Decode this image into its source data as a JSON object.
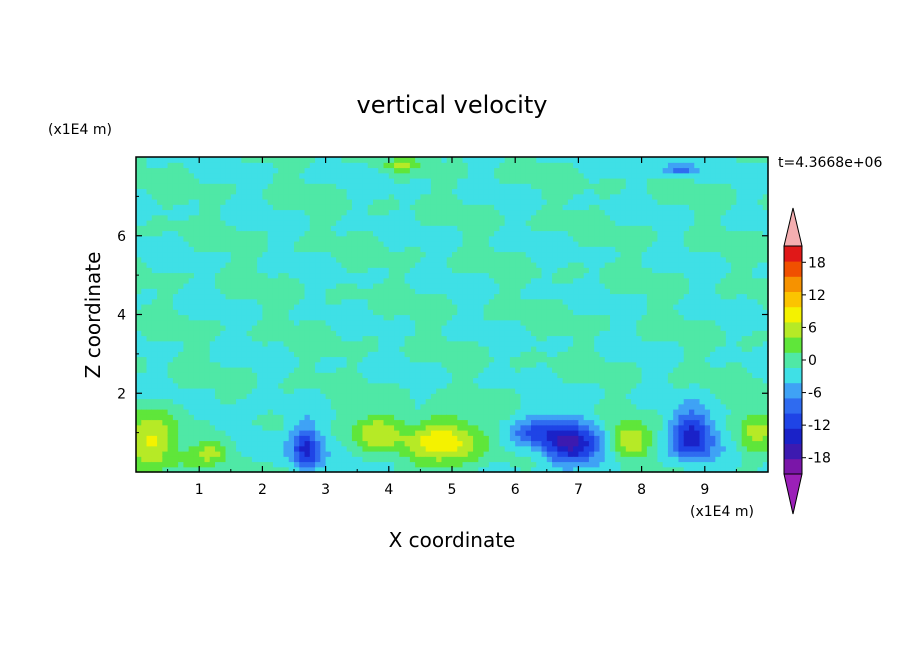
{
  "chart_data": {
    "type": "heatmap",
    "title": "vertical velocity",
    "xlabel": "X coordinate",
    "ylabel": "Z coordinate",
    "x_unit": "(x1E4 m)",
    "y_unit": "(x1E4 m)",
    "time_label": "t=4.3668e+06",
    "xlim": [
      0,
      10
    ],
    "ylim": [
      0,
      8
    ],
    "x_ticks": [
      1,
      2,
      3,
      4,
      5,
      6,
      7,
      8,
      9
    ],
    "y_ticks": [
      2,
      4,
      6
    ],
    "colorbar": {
      "levels": [
        -21,
        -18,
        -15,
        -12,
        -9,
        -6,
        -3,
        0,
        3,
        6,
        9,
        12,
        15,
        18,
        21
      ],
      "tick_labels": [
        "18",
        "12",
        "6",
        "0",
        "-6",
        "-12",
        "-18"
      ],
      "tick_values": [
        18,
        12,
        6,
        0,
        -6,
        -12,
        -18
      ],
      "colors": [
        "#7a16a8",
        "#3c1ab0",
        "#1a22c8",
        "#1f44e6",
        "#2f6bf0",
        "#3fa2f5",
        "#3fe0e6",
        "#4fe8a6",
        "#5fe63a",
        "#b6ea26",
        "#f4f200",
        "#fbc400",
        "#f69200",
        "#f05000",
        "#e01818"
      ],
      "under_color": "#9b20b8",
      "over_color": "#f4aeb0"
    },
    "blobs": [
      {
        "x": 0.25,
        "z": 0.85,
        "value": 9,
        "rx": 0.45,
        "rz": 0.7
      },
      {
        "x": 1.2,
        "z": 0.5,
        "value": 8,
        "rx": 0.35,
        "rz": 0.35
      },
      {
        "x": 1.5,
        "z": 1.35,
        "value": -3,
        "rx": 0.3,
        "rz": 0.3
      },
      {
        "x": 2.0,
        "z": 0.8,
        "value": -4,
        "rx": 0.3,
        "rz": 0.35
      },
      {
        "x": 2.7,
        "z": 0.6,
        "value": -13,
        "rx": 0.25,
        "rz": 0.55
      },
      {
        "x": 3.8,
        "z": 1.0,
        "value": 7,
        "rx": 0.45,
        "rz": 0.5
      },
      {
        "x": 4.9,
        "z": 0.8,
        "value": 12,
        "rx": 0.55,
        "rz": 0.6
      },
      {
        "x": 6.3,
        "z": 1.0,
        "value": -9,
        "rx": 0.4,
        "rz": 0.4
      },
      {
        "x": 6.9,
        "z": 0.7,
        "value": -15,
        "rx": 0.45,
        "rz": 0.55
      },
      {
        "x": 7.8,
        "z": 0.8,
        "value": 10,
        "rx": 0.3,
        "rz": 0.4
      },
      {
        "x": 8.8,
        "z": 0.9,
        "value": -14,
        "rx": 0.35,
        "rz": 0.6
      },
      {
        "x": 9.8,
        "z": 1.0,
        "value": 6,
        "rx": 0.3,
        "rz": 0.6
      },
      {
        "x": 8.6,
        "z": 7.7,
        "value": -8,
        "rx": 0.25,
        "rz": 0.15
      },
      {
        "x": 4.2,
        "z": 7.8,
        "value": 5,
        "rx": 0.3,
        "rz": 0.15
      }
    ]
  }
}
